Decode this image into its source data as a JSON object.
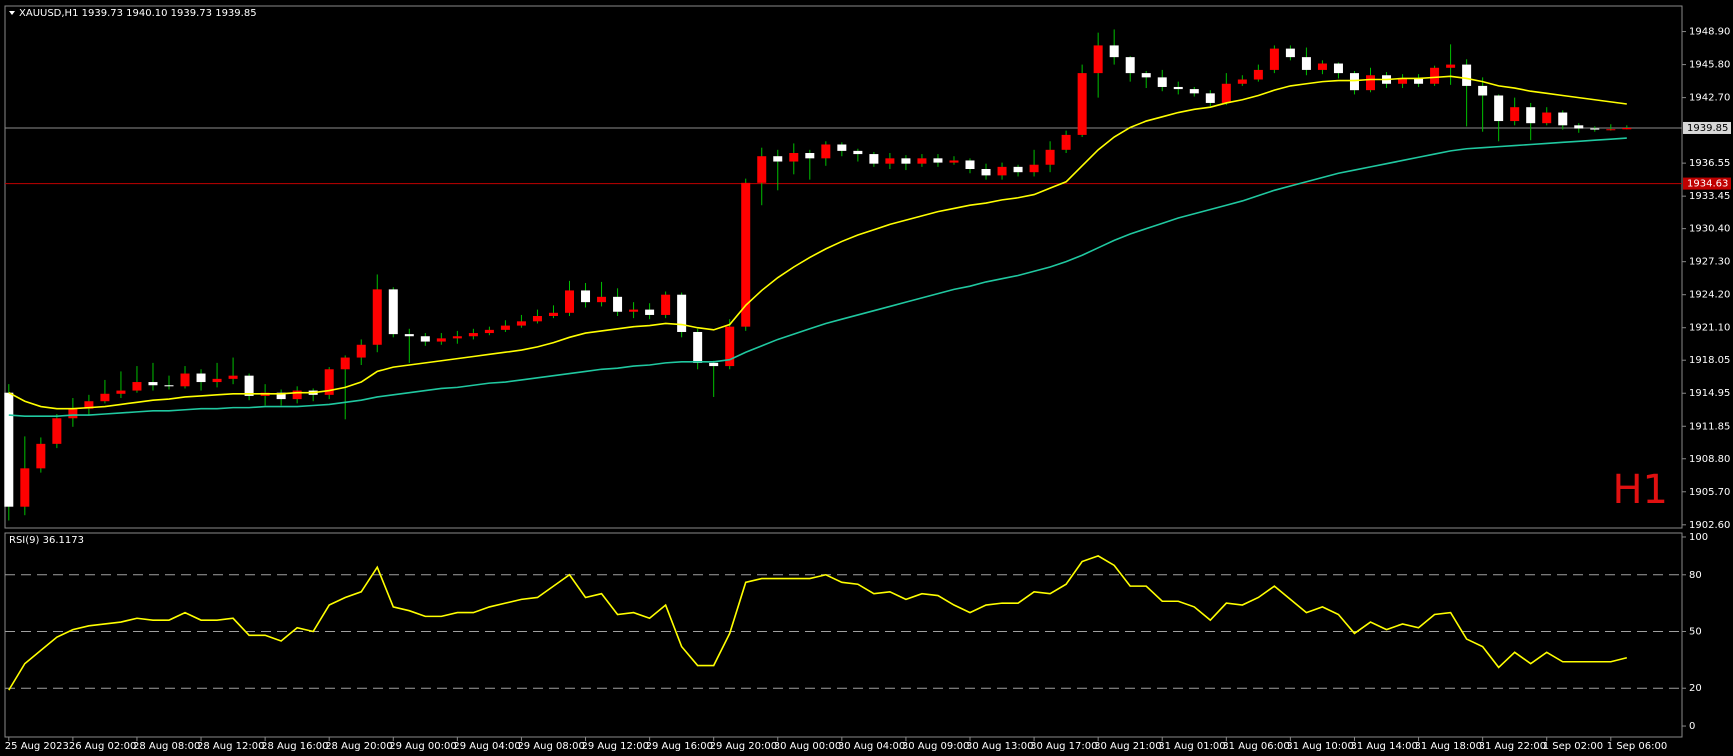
{
  "chart_data": [
    {
      "type": "candlestick",
      "title": "XAUUSD,H1  1939.73 1940.10 1939.73 1939.85",
      "annotation": "H1",
      "up_color": "#ff0000",
      "down_color": "#ffffff",
      "wick_color": "#00c000",
      "open": [
        1915.0,
        1904.3,
        1907.9,
        1910.2,
        1912.6,
        1913.5,
        1914.2,
        1914.9,
        1915.2,
        1916.0,
        1915.7,
        1915.6,
        1916.8,
        1916.0,
        1916.3,
        1916.6,
        1914.7,
        1915.0,
        1914.4,
        1915.2,
        1914.8,
        1917.2,
        1918.3,
        1919.5,
        1924.7,
        1920.5,
        1920.3,
        1919.8,
        1920.1,
        1920.3,
        1920.6,
        1920.9,
        1921.3,
        1921.7,
        1922.2,
        1922.5,
        1924.6,
        1923.5,
        1924.0,
        1922.6,
        1922.8,
        1922.3,
        1924.2,
        1920.7,
        1917.8,
        1917.5,
        1921.2,
        1934.7,
        1937.2,
        1936.7,
        1937.5,
        1937.0,
        1938.3,
        1937.7,
        1937.4,
        1936.5,
        1937.0,
        1936.5,
        1937.0,
        1936.6,
        1936.8,
        1936.0,
        1935.4,
        1936.2,
        1935.7,
        1936.4,
        1937.8,
        1939.2,
        1945.0,
        1947.6,
        1946.5,
        1945.0,
        1944.6,
        1943.7,
        1943.5,
        1943.1,
        1942.2,
        1944.0,
        1944.4,
        1945.3,
        1947.3,
        1946.5,
        1945.3,
        1945.9,
        1945.0,
        1943.4,
        1944.8,
        1944.0,
        1944.5,
        1944.0,
        1945.5,
        1945.8,
        1943.8,
        1942.9,
        1940.5,
        1941.8,
        1940.3,
        1941.3,
        1940.1,
        1939.8,
        1939.7,
        1939.73
      ],
      "high": [
        1915.8,
        1910.9,
        1910.8,
        1913.0,
        1914.5,
        1914.8,
        1916.2,
        1917.0,
        1917.5,
        1917.8,
        1916.6,
        1917.5,
        1917.2,
        1917.8,
        1918.3,
        1916.8,
        1915.8,
        1915.3,
        1915.6,
        1915.4,
        1917.4,
        1918.5,
        1920.0,
        1926.1,
        1924.9,
        1921.0,
        1920.6,
        1920.6,
        1920.8,
        1921.0,
        1921.2,
        1921.8,
        1922.3,
        1922.8,
        1923.2,
        1925.5,
        1925.3,
        1925.4,
        1924.8,
        1923.5,
        1923.4,
        1924.5,
        1924.4,
        1921.0,
        1918.0,
        1921.9,
        1935.1,
        1938.0,
        1937.8,
        1938.4,
        1937.8,
        1938.6,
        1938.5,
        1937.9,
        1937.6,
        1937.5,
        1937.3,
        1937.4,
        1937.4,
        1937.2,
        1937.0,
        1936.5,
        1936.6,
        1936.4,
        1937.8,
        1938.6,
        1939.6,
        1945.8,
        1948.8,
        1949.1,
        1946.6,
        1945.2,
        1945.3,
        1944.2,
        1943.7,
        1943.4,
        1945.0,
        1944.8,
        1945.8,
        1947.6,
        1947.6,
        1947.4,
        1946.2,
        1946.0,
        1945.2,
        1945.5,
        1945.1,
        1944.9,
        1944.9,
        1945.7,
        1947.7,
        1946.3,
        1944.6,
        1943.0,
        1942.7,
        1942.2,
        1941.8,
        1941.5,
        1940.3,
        1940.0,
        1940.2,
        1940.1
      ],
      "low": [
        1903.0,
        1903.5,
        1907.5,
        1909.8,
        1911.8,
        1912.9,
        1914.0,
        1914.5,
        1915.0,
        1915.2,
        1915.3,
        1915.4,
        1915.2,
        1915.5,
        1915.8,
        1914.3,
        1913.8,
        1913.8,
        1914.0,
        1914.2,
        1914.4,
        1912.5,
        1917.6,
        1918.8,
        1920.2,
        1917.8,
        1919.4,
        1919.5,
        1919.6,
        1920.0,
        1920.4,
        1920.7,
        1921.1,
        1921.5,
        1922.0,
        1922.2,
        1923.0,
        1923.1,
        1922.2,
        1922.0,
        1921.9,
        1922.0,
        1920.2,
        1917.2,
        1914.6,
        1917.2,
        1920.8,
        1932.6,
        1934.0,
        1935.5,
        1935.0,
        1936.3,
        1937.2,
        1936.7,
        1936.2,
        1936.0,
        1935.9,
        1936.2,
        1936.2,
        1936.4,
        1935.6,
        1935.0,
        1935.0,
        1935.3,
        1935.3,
        1935.7,
        1937.5,
        1939.0,
        1942.7,
        1945.8,
        1944.2,
        1943.6,
        1943.3,
        1943.0,
        1942.8,
        1941.9,
        1942.0,
        1943.8,
        1944.2,
        1945.0,
        1946.2,
        1944.8,
        1944.9,
        1944.5,
        1943.0,
        1943.2,
        1943.6,
        1943.6,
        1943.7,
        1943.8,
        1943.9,
        1940.0,
        1939.5,
        1938.6,
        1940.1,
        1938.7,
        1940.1,
        1939.7,
        1939.4,
        1939.5,
        1939.6,
        1939.73
      ],
      "close": [
        1904.3,
        1907.9,
        1910.2,
        1912.6,
        1913.5,
        1914.2,
        1914.9,
        1915.2,
        1916.0,
        1915.7,
        1915.6,
        1916.8,
        1916.0,
        1916.3,
        1916.6,
        1914.7,
        1915.0,
        1914.4,
        1915.2,
        1914.8,
        1917.2,
        1918.3,
        1919.5,
        1924.7,
        1920.5,
        1920.3,
        1919.8,
        1920.1,
        1920.3,
        1920.6,
        1920.9,
        1921.3,
        1921.7,
        1922.2,
        1922.5,
        1924.6,
        1923.5,
        1924.0,
        1922.6,
        1922.8,
        1922.3,
        1924.2,
        1920.7,
        1917.8,
        1917.5,
        1921.2,
        1934.7,
        1937.2,
        1936.7,
        1937.5,
        1937.0,
        1938.3,
        1937.7,
        1937.4,
        1936.5,
        1937.0,
        1936.5,
        1937.0,
        1936.6,
        1936.8,
        1936.0,
        1935.4,
        1936.2,
        1935.7,
        1936.4,
        1937.8,
        1939.2,
        1945.0,
        1947.6,
        1946.5,
        1945.0,
        1944.6,
        1943.7,
        1943.5,
        1943.1,
        1942.2,
        1944.0,
        1944.4,
        1945.3,
        1947.3,
        1946.5,
        1945.3,
        1945.9,
        1945.0,
        1943.4,
        1944.8,
        1944.0,
        1944.5,
        1944.0,
        1945.5,
        1945.8,
        1943.8,
        1942.9,
        1940.5,
        1941.8,
        1940.3,
        1941.3,
        1940.1,
        1939.8,
        1939.7,
        1939.73,
        1939.85
      ],
      "overlays": [
        {
          "color": "#ffff00",
          "values": [
            1915.0,
            1914.2,
            1913.7,
            1913.5,
            1913.5,
            1913.6,
            1913.7,
            1913.9,
            1914.1,
            1914.3,
            1914.4,
            1914.6,
            1914.7,
            1914.8,
            1914.9,
            1914.9,
            1914.9,
            1914.9,
            1915.0,
            1915.0,
            1915.2,
            1915.5,
            1916.0,
            1917.0,
            1917.4,
            1917.6,
            1917.8,
            1918.0,
            1918.2,
            1918.4,
            1918.6,
            1918.8,
            1919.0,
            1919.3,
            1919.7,
            1920.2,
            1920.6,
            1920.8,
            1921.0,
            1921.2,
            1921.3,
            1921.5,
            1921.4,
            1921.1,
            1920.9,
            1921.4,
            1923.2,
            1924.6,
            1925.8,
            1926.8,
            1927.7,
            1928.5,
            1929.2,
            1929.8,
            1930.3,
            1930.8,
            1931.2,
            1931.6,
            1932.0,
            1932.3,
            1932.6,
            1932.8,
            1933.1,
            1933.3,
            1933.6,
            1934.2,
            1934.8,
            1936.3,
            1937.8,
            1939.0,
            1939.9,
            1940.5,
            1940.9,
            1941.3,
            1941.6,
            1941.8,
            1942.2,
            1942.5,
            1942.9,
            1943.4,
            1943.8,
            1944.0,
            1944.2,
            1944.3,
            1944.3,
            1944.4,
            1944.4,
            1944.5,
            1944.5,
            1944.6,
            1944.7,
            1944.5,
            1944.2,
            1943.8,
            1943.6,
            1943.3,
            1943.1,
            1942.9,
            1942.7,
            1942.5,
            1942.3,
            1942.1
          ]
        },
        {
          "color": "#20c8a0",
          "values": [
            1912.9,
            1912.8,
            1912.8,
            1912.8,
            1912.9,
            1912.9,
            1913.0,
            1913.1,
            1913.2,
            1913.3,
            1913.3,
            1913.4,
            1913.5,
            1913.5,
            1913.6,
            1913.6,
            1913.7,
            1913.7,
            1913.7,
            1913.8,
            1913.9,
            1914.1,
            1914.3,
            1914.6,
            1914.8,
            1915.0,
            1915.2,
            1915.4,
            1915.5,
            1915.7,
            1915.9,
            1916.0,
            1916.2,
            1916.4,
            1916.6,
            1916.8,
            1917.0,
            1917.2,
            1917.3,
            1917.5,
            1917.6,
            1917.8,
            1917.9,
            1917.9,
            1917.9,
            1918.1,
            1918.8,
            1919.4,
            1920.0,
            1920.5,
            1921.0,
            1921.5,
            1921.9,
            1922.3,
            1922.7,
            1923.1,
            1923.5,
            1923.9,
            1924.3,
            1924.7,
            1925.0,
            1925.4,
            1925.7,
            1926.0,
            1926.4,
            1926.8,
            1927.3,
            1927.9,
            1928.6,
            1929.3,
            1929.9,
            1930.4,
            1930.9,
            1931.4,
            1931.8,
            1932.2,
            1932.6,
            1933.0,
            1933.5,
            1934.0,
            1934.4,
            1934.8,
            1935.2,
            1935.6,
            1935.9,
            1936.2,
            1936.5,
            1936.8,
            1937.1,
            1937.4,
            1937.7,
            1937.9,
            1938.0,
            1938.1,
            1938.2,
            1938.3,
            1938.4,
            1938.5,
            1938.6,
            1938.7,
            1938.8,
            1938.9
          ]
        }
      ],
      "price_lines": [
        {
          "value": 1939.85,
          "color": "#8c8c8c",
          "box": "#d8d8d8",
          "text_color": "#000000"
        },
        {
          "value": 1934.63,
          "color": "#c00000",
          "box": "#c00000",
          "text_color": "#ffffff"
        }
      ],
      "ylim": [
        1902.3,
        1951.3
      ],
      "yticks": [
        {
          "value": 1948.9,
          "label": "1948.90"
        },
        {
          "value": 1945.8,
          "label": "1945.80"
        },
        {
          "value": 1942.7,
          "label": "1942.70"
        },
        {
          "value": 1936.55,
          "label": "1936.55"
        },
        {
          "value": 1933.45,
          "label": "1933.45"
        },
        {
          "value": 1930.4,
          "label": "1930.40"
        },
        {
          "value": 1927.3,
          "label": "1927.30"
        },
        {
          "value": 1924.2,
          "label": "1924.20"
        },
        {
          "value": 1921.1,
          "label": "1921.10"
        },
        {
          "value": 1918.05,
          "label": "1918.05"
        },
        {
          "value": 1914.95,
          "label": "1914.95"
        },
        {
          "value": 1911.85,
          "label": "1911.85"
        },
        {
          "value": 1908.8,
          "label": "1908.80"
        },
        {
          "value": 1905.7,
          "label": "1905.70"
        },
        {
          "value": 1902.6,
          "label": "1902.60"
        }
      ]
    },
    {
      "type": "line",
      "title": "RSI(9) 36.1173",
      "color": "#ffff00",
      "values": [
        19,
        33,
        40,
        47,
        51,
        53,
        54,
        55,
        57,
        56,
        56,
        60,
        56,
        56,
        57,
        48,
        48,
        45,
        52,
        50,
        64,
        68,
        71,
        84,
        63,
        61,
        58,
        58,
        60,
        60,
        63,
        65,
        67,
        68,
        74,
        80,
        68,
        70,
        59,
        60,
        57,
        64,
        42,
        32,
        32,
        49,
        76,
        78,
        78,
        78,
        78,
        80,
        76,
        75,
        70,
        71,
        67,
        70,
        69,
        64,
        60,
        64,
        65,
        65,
        71,
        70,
        75,
        87,
        90,
        85,
        74,
        74,
        66,
        66,
        63,
        56,
        65,
        64,
        68,
        74,
        67,
        60,
        63,
        59,
        49,
        55,
        51,
        54,
        52,
        59,
        60,
        46,
        42,
        31,
        39,
        33,
        39,
        34,
        34,
        34,
        34,
        36.1173
      ],
      "categories": [
        "25 Aug 2023",
        null,
        null,
        null,
        "26 Aug 02:00",
        null,
        null,
        null,
        "28 Aug 08:00",
        null,
        null,
        null,
        "28 Aug 12:00",
        null,
        null,
        null,
        "28 Aug 16:00",
        null,
        null,
        null,
        "28 Aug 20:00",
        null,
        null,
        null,
        "29 Aug 00:00",
        null,
        null,
        null,
        "29 Aug 04:00",
        null,
        null,
        null,
        "29 Aug 08:00",
        null,
        null,
        null,
        "29 Aug 12:00",
        null,
        null,
        null,
        "29 Aug 16:00",
        null,
        null,
        null,
        "29 Aug 20:00",
        null,
        null,
        null,
        "30 Aug 00:00",
        null,
        null,
        null,
        "30 Aug 04:00",
        null,
        null,
        null,
        "30 Aug 09:00",
        null,
        null,
        null,
        "30 Aug 13:00",
        null,
        null,
        null,
        "30 Aug 17:00",
        null,
        null,
        null,
        "30 Aug 21:00",
        null,
        null,
        null,
        "31 Aug 01:00",
        null,
        null,
        null,
        "31 Aug 06:00",
        null,
        null,
        null,
        "31 Aug 10:00",
        null,
        null,
        null,
        "31 Aug 14:00",
        null,
        null,
        null,
        "31 Aug 18:00",
        null,
        null,
        null,
        "31 Aug 22:00",
        null,
        null,
        null,
        "1 Sep 02:00",
        null,
        null,
        null,
        "1 Sep 06:00",
        null
      ],
      "ylim": [
        -5.8,
        102.1
      ],
      "yticks": [
        0,
        20,
        50,
        80,
        100
      ],
      "levels": [
        20,
        50,
        80
      ]
    }
  ]
}
